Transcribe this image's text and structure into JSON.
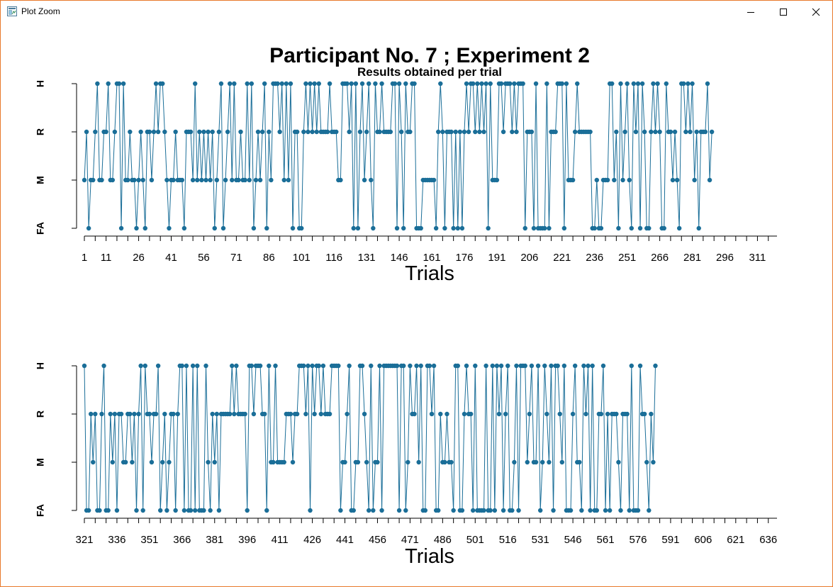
{
  "window": {
    "title": "Plot Zoom",
    "icons": [
      "app-icon",
      "minimize-icon",
      "maximize-icon",
      "close-icon"
    ]
  },
  "colors": {
    "series": "#1a6e98",
    "frame": "#e8792b"
  },
  "chart_data": [
    {
      "type": "line",
      "title": "Participant No. 7 ; Experiment 2",
      "subtitle": "Results obtained per trial",
      "xlabel": "Trials",
      "ylabel": "",
      "xlim": [
        1,
        320
      ],
      "y_levels": [
        "FA",
        "M",
        "R",
        "H"
      ],
      "x_ticks": [
        1,
        11,
        26,
        41,
        56,
        71,
        86,
        101,
        116,
        131,
        146,
        161,
        176,
        191,
        206,
        221,
        236,
        251,
        266,
        281,
        296,
        311
      ],
      "series": [
        {
          "x_start": 1,
          "values": [
            "M",
            "R",
            "FA",
            "M",
            "M",
            "R",
            "H",
            "M",
            "M",
            "R",
            "R",
            "H",
            "M",
            "M",
            "R",
            "H",
            "H",
            "FA",
            "H",
            "M",
            "M",
            "R",
            "M",
            "M",
            "FA",
            "M",
            "R",
            "M",
            "FA",
            "R",
            "R",
            "M",
            "R",
            "H",
            "R",
            "H",
            "H",
            "R",
            "M",
            "FA",
            "M",
            "M",
            "R",
            "M",
            "M",
            "M",
            "FA",
            "R",
            "R",
            "R",
            "M",
            "H",
            "M",
            "R",
            "M",
            "R",
            "M",
            "R",
            "M",
            "R",
            "FA",
            "M",
            "R",
            "H",
            "FA",
            "M",
            "R",
            "H",
            "M",
            "H",
            "M",
            "M",
            "R",
            "M",
            "M",
            "H",
            "M",
            "H",
            "FA",
            "M",
            "R",
            "M",
            "R",
            "H",
            "FA",
            "R",
            "M",
            "H",
            "H",
            "H",
            "R",
            "H",
            "M",
            "H",
            "M",
            "H",
            "FA",
            "R",
            "R",
            "FA",
            "FA",
            "R",
            "H",
            "R",
            "H",
            "R",
            "H",
            "R",
            "H",
            "R",
            "R",
            "R",
            "R",
            "H",
            "R",
            "R",
            "R",
            "M",
            "M",
            "H",
            "H",
            "H",
            "R",
            "H",
            "FA",
            "H",
            "FA",
            "R",
            "H",
            "M",
            "R",
            "H",
            "M",
            "FA",
            "H",
            "R",
            "R",
            "H",
            "R",
            "R",
            "R",
            "R",
            "H",
            "H",
            "FA",
            "H",
            "R",
            "FA",
            "H",
            "R",
            "R",
            "H",
            "H",
            "FA",
            "FA",
            "FA",
            "M",
            "M",
            "M",
            "M",
            "M",
            "M",
            "FA",
            "R",
            "H",
            "R",
            "FA",
            "R",
            "R",
            "R",
            "FA",
            "R",
            "FA",
            "R",
            "FA",
            "R",
            "H",
            "R",
            "H",
            "H",
            "R",
            "H",
            "R",
            "H",
            "R",
            "H",
            "FA",
            "H",
            "M",
            "M",
            "M",
            "H",
            "H",
            "R",
            "H",
            "H",
            "H",
            "R",
            "H",
            "R",
            "H",
            "H",
            "H",
            "FA",
            "R",
            "R",
            "R",
            "FA",
            "H",
            "FA",
            "FA",
            "FA",
            "FA",
            "H",
            "FA",
            "R",
            "R",
            "R",
            "H",
            "H",
            "H",
            "FA",
            "H",
            "M",
            "M",
            "M",
            "R",
            "H",
            "R",
            "R",
            "R",
            "R",
            "R",
            "R",
            "FA",
            "FA",
            "M",
            "FA",
            "FA",
            "M",
            "M",
            "M",
            "H",
            "H",
            "M",
            "R",
            "FA",
            "H",
            "M",
            "R",
            "H",
            "M",
            "FA",
            "H",
            "R",
            "H",
            "FA",
            "H",
            "R",
            "FA",
            "FA",
            "R",
            "H",
            "R",
            "H",
            "R",
            "FA",
            "FA",
            "H",
            "R",
            "R",
            "M",
            "R",
            "M",
            "FA",
            "H",
            "H",
            "R",
            "H",
            "R",
            "H",
            "M",
            "R",
            "FA",
            "R",
            "R",
            "R",
            "H",
            "M",
            "R"
          ]
        }
      ]
    },
    {
      "type": "line",
      "title": "",
      "subtitle": "",
      "xlabel": "Trials",
      "ylabel": "",
      "xlim": [
        321,
        640
      ],
      "y_levels": [
        "FA",
        "M",
        "R",
        "H"
      ],
      "x_ticks": [
        321,
        336,
        351,
        366,
        381,
        396,
        411,
        426,
        441,
        456,
        471,
        486,
        501,
        516,
        531,
        546,
        561,
        576,
        591,
        606,
        621,
        636
      ],
      "series": [
        {
          "x_start": 321,
          "values": [
            "H",
            "FA",
            "FA",
            "R",
            "M",
            "R",
            "FA",
            "FA",
            "R",
            "H",
            "FA",
            "FA",
            "R",
            "M",
            "R",
            "FA",
            "R",
            "R",
            "M",
            "M",
            "R",
            "R",
            "M",
            "R",
            "FA",
            "R",
            "H",
            "FA",
            "H",
            "R",
            "R",
            "M",
            "R",
            "R",
            "H",
            "FA",
            "M",
            "R",
            "FA",
            "M",
            "R",
            "R",
            "FA",
            "R",
            "H",
            "H",
            "FA",
            "H",
            "FA",
            "FA",
            "H",
            "FA",
            "H",
            "FA",
            "FA",
            "FA",
            "H",
            "M",
            "FA",
            "R",
            "M",
            "R",
            "FA",
            "R",
            "R",
            "R",
            "R",
            "R",
            "H",
            "R",
            "H",
            "R",
            "R",
            "R",
            "R",
            "FA",
            "H",
            "H",
            "R",
            "H",
            "H",
            "H",
            "R",
            "R",
            "FA",
            "H",
            "M",
            "M",
            "H",
            "M",
            "M",
            "M",
            "M",
            "R",
            "R",
            "R",
            "M",
            "R",
            "R",
            "H",
            "H",
            "H",
            "R",
            "H",
            "FA",
            "H",
            "R",
            "H",
            "H",
            "R",
            "H",
            "R",
            "R",
            "R",
            "H",
            "H",
            "H",
            "H",
            "FA",
            "M",
            "M",
            "R",
            "H",
            "FA",
            "FA",
            "M",
            "M",
            "H",
            "H",
            "R",
            "M",
            "FA",
            "H",
            "FA",
            "M",
            "M",
            "H",
            "FA",
            "H",
            "H",
            "H",
            "H",
            "H",
            "H",
            "H",
            "FA",
            "H",
            "H",
            "FA",
            "M",
            "H",
            "R",
            "R",
            "H",
            "M",
            "H",
            "FA",
            "FA",
            "H",
            "H",
            "R",
            "H",
            "FA",
            "FA",
            "R",
            "M",
            "M",
            "R",
            "M",
            "M",
            "FA",
            "H",
            "H",
            "FA",
            "FA",
            "R",
            "H",
            "R",
            "R",
            "FA",
            "H",
            "FA",
            "FA",
            "FA",
            "FA",
            "H",
            "FA",
            "FA",
            "H",
            "FA",
            "H",
            "R",
            "H",
            "FA",
            "R",
            "H",
            "FA",
            "FA",
            "M",
            "H",
            "FA",
            "H",
            "H",
            "H",
            "M",
            "R",
            "H",
            "M",
            "M",
            "H",
            "FA",
            "M",
            "H",
            "R",
            "M",
            "H",
            "FA",
            "H",
            "H",
            "R",
            "M",
            "H",
            "FA",
            "FA",
            "FA",
            "R",
            "H",
            "M",
            "M",
            "FA",
            "H",
            "R",
            "H",
            "FA",
            "H",
            "FA",
            "FA",
            "R",
            "R",
            "H",
            "FA",
            "R",
            "FA",
            "R",
            "R",
            "R",
            "M",
            "FA",
            "R",
            "R",
            "R",
            "FA",
            "H",
            "FA",
            "FA",
            "FA",
            "H",
            "R",
            "R",
            "M",
            "FA",
            "R",
            "M",
            "H"
          ]
        }
      ]
    }
  ]
}
